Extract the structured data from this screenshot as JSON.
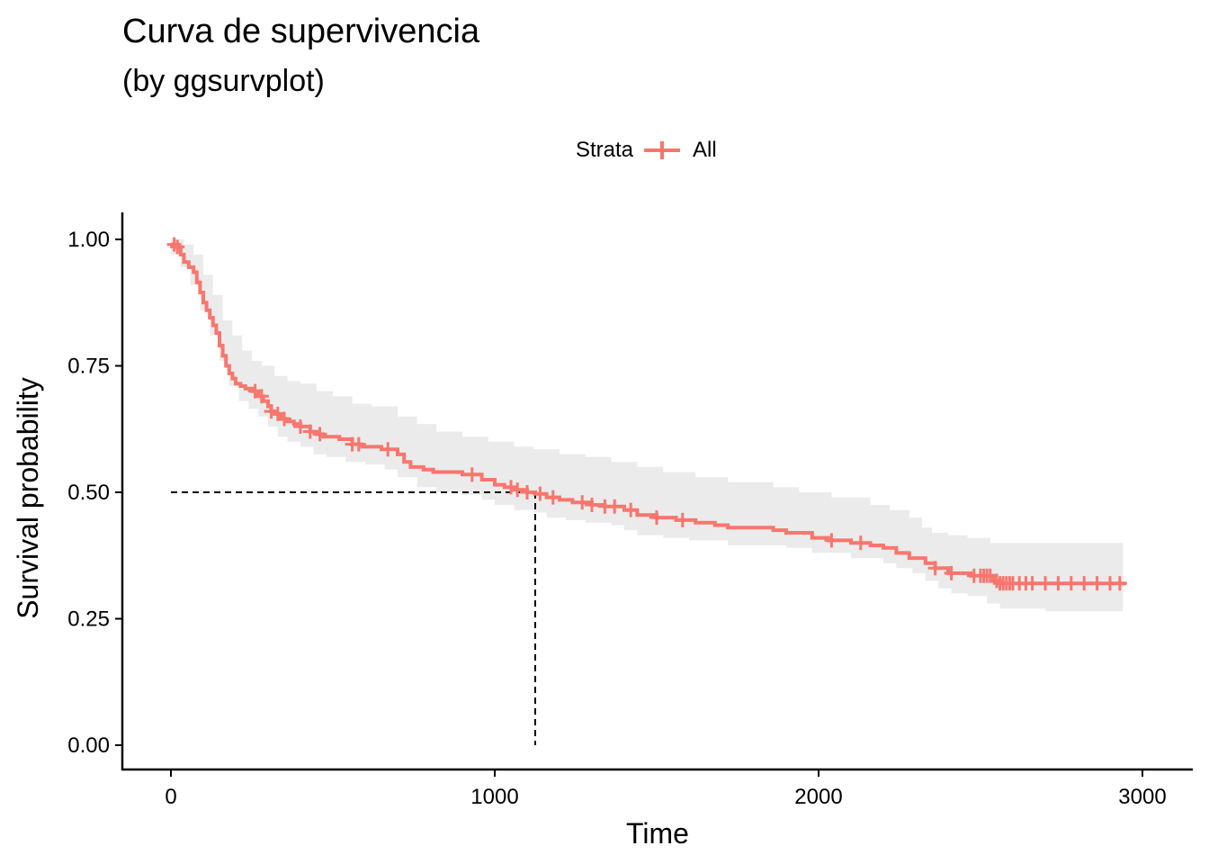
{
  "chart_data": {
    "type": "line",
    "title": "Curva de supervivencia",
    "subtitle": "(by ggsurvplot)",
    "xlabel": "Time",
    "ylabel": "Survival probability",
    "xlim": [
      0,
      3000
    ],
    "ylim": [
      0,
      1
    ],
    "x_ticks": [
      0,
      1000,
      2000,
      3000
    ],
    "x_tick_labels": [
      "0",
      "1000",
      "2000",
      "3000"
    ],
    "y_ticks": [
      0,
      0.25,
      0.5,
      0.75,
      1.0
    ],
    "y_tick_labels": [
      "0.00",
      "0.25",
      "0.50",
      "0.75",
      "1.00"
    ],
    "grid": false,
    "legend": {
      "title": "Strata",
      "position": "top",
      "entries": [
        "All"
      ]
    },
    "colors": {
      "curve": "#F8766D",
      "ribbon": "#EBEBEB",
      "median_line": "#000000"
    },
    "median_survival_time": 1125,
    "series": [
      {
        "name": "All",
        "step_points": [
          [
            0,
            0.99
          ],
          [
            20,
            0.985
          ],
          [
            30,
            0.97
          ],
          [
            40,
            0.955
          ],
          [
            55,
            0.945
          ],
          [
            70,
            0.935
          ],
          [
            80,
            0.915
          ],
          [
            90,
            0.895
          ],
          [
            100,
            0.875
          ],
          [
            110,
            0.86
          ],
          [
            120,
            0.845
          ],
          [
            130,
            0.83
          ],
          [
            140,
            0.815
          ],
          [
            150,
            0.79
          ],
          [
            160,
            0.77
          ],
          [
            170,
            0.75
          ],
          [
            180,
            0.735
          ],
          [
            190,
            0.725
          ],
          [
            200,
            0.715
          ],
          [
            215,
            0.71
          ],
          [
            230,
            0.705
          ],
          [
            250,
            0.7
          ],
          [
            270,
            0.69
          ],
          [
            285,
            0.68
          ],
          [
            300,
            0.67
          ],
          [
            310,
            0.66
          ],
          [
            320,
            0.655
          ],
          [
            340,
            0.645
          ],
          [
            360,
            0.64
          ],
          [
            380,
            0.635
          ],
          [
            400,
            0.63
          ],
          [
            430,
            0.62
          ],
          [
            450,
            0.615
          ],
          [
            470,
            0.61
          ],
          [
            520,
            0.605
          ],
          [
            560,
            0.595
          ],
          [
            590,
            0.59
          ],
          [
            650,
            0.585
          ],
          [
            700,
            0.575
          ],
          [
            720,
            0.56
          ],
          [
            740,
            0.55
          ],
          [
            780,
            0.545
          ],
          [
            810,
            0.54
          ],
          [
            900,
            0.535
          ],
          [
            960,
            0.525
          ],
          [
            1000,
            0.515
          ],
          [
            1030,
            0.51
          ],
          [
            1060,
            0.505
          ],
          [
            1100,
            0.5
          ],
          [
            1125,
            0.497
          ],
          [
            1160,
            0.49
          ],
          [
            1200,
            0.485
          ],
          [
            1240,
            0.48
          ],
          [
            1300,
            0.475
          ],
          [
            1340,
            0.472
          ],
          [
            1400,
            0.465
          ],
          [
            1440,
            0.455
          ],
          [
            1500,
            0.45
          ],
          [
            1560,
            0.445
          ],
          [
            1620,
            0.44
          ],
          [
            1680,
            0.435
          ],
          [
            1720,
            0.43
          ],
          [
            1860,
            0.425
          ],
          [
            1900,
            0.42
          ],
          [
            1980,
            0.41
          ],
          [
            2030,
            0.405
          ],
          [
            2100,
            0.4
          ],
          [
            2160,
            0.395
          ],
          [
            2200,
            0.39
          ],
          [
            2240,
            0.38
          ],
          [
            2280,
            0.37
          ],
          [
            2330,
            0.36
          ],
          [
            2360,
            0.35
          ],
          [
            2400,
            0.34
          ],
          [
            2470,
            0.335
          ],
          [
            2500,
            0.335
          ],
          [
            2540,
            0.325
          ],
          [
            2560,
            0.32
          ],
          [
            2950,
            0.32
          ]
        ],
        "censor_times": [
          10,
          20,
          260,
          280,
          310,
          330,
          350,
          400,
          430,
          460,
          560,
          580,
          670,
          930,
          1050,
          1070,
          1100,
          1140,
          1180,
          1270,
          1300,
          1340,
          1370,
          1420,
          1500,
          1580,
          2040,
          2130,
          2360,
          2410,
          2480,
          2500,
          2510,
          2520,
          2530,
          2550,
          2560,
          2570,
          2580,
          2590,
          2600,
          2620,
          2640,
          2660,
          2700,
          2740,
          2780,
          2820,
          2860,
          2900,
          2930
        ],
        "ci_lower": [
          [
            0,
            0.97
          ],
          [
            30,
            0.945
          ],
          [
            60,
            0.91
          ],
          [
            90,
            0.86
          ],
          [
            120,
            0.81
          ],
          [
            150,
            0.76
          ],
          [
            180,
            0.71
          ],
          [
            210,
            0.68
          ],
          [
            240,
            0.665
          ],
          [
            270,
            0.65
          ],
          [
            300,
            0.63
          ],
          [
            330,
            0.61
          ],
          [
            360,
            0.6
          ],
          [
            400,
            0.59
          ],
          [
            440,
            0.575
          ],
          [
            480,
            0.57
          ],
          [
            540,
            0.56
          ],
          [
            600,
            0.555
          ],
          [
            660,
            0.545
          ],
          [
            700,
            0.53
          ],
          [
            760,
            0.51
          ],
          [
            820,
            0.5
          ],
          [
            900,
            0.495
          ],
          [
            960,
            0.485
          ],
          [
            1000,
            0.475
          ],
          [
            1060,
            0.465
          ],
          [
            1120,
            0.46
          ],
          [
            1160,
            0.45
          ],
          [
            1220,
            0.445
          ],
          [
            1280,
            0.44
          ],
          [
            1360,
            0.435
          ],
          [
            1400,
            0.425
          ],
          [
            1440,
            0.415
          ],
          [
            1520,
            0.41
          ],
          [
            1600,
            0.405
          ],
          [
            1720,
            0.395
          ],
          [
            1900,
            0.39
          ],
          [
            1980,
            0.38
          ],
          [
            2100,
            0.37
          ],
          [
            2200,
            0.36
          ],
          [
            2240,
            0.35
          ],
          [
            2290,
            0.34
          ],
          [
            2330,
            0.325
          ],
          [
            2370,
            0.31
          ],
          [
            2410,
            0.3
          ],
          [
            2460,
            0.295
          ],
          [
            2520,
            0.28
          ],
          [
            2560,
            0.27
          ],
          [
            2700,
            0.265
          ],
          [
            2940,
            0.26
          ]
        ],
        "ci_upper": [
          [
            0,
            1.0
          ],
          [
            40,
            0.99
          ],
          [
            70,
            0.97
          ],
          [
            100,
            0.93
          ],
          [
            130,
            0.89
          ],
          [
            160,
            0.84
          ],
          [
            190,
            0.81
          ],
          [
            220,
            0.78
          ],
          [
            250,
            0.76
          ],
          [
            280,
            0.75
          ],
          [
            320,
            0.73
          ],
          [
            360,
            0.72
          ],
          [
            400,
            0.715
          ],
          [
            450,
            0.7
          ],
          [
            500,
            0.69
          ],
          [
            560,
            0.675
          ],
          [
            620,
            0.67
          ],
          [
            700,
            0.65
          ],
          [
            760,
            0.635
          ],
          [
            820,
            0.62
          ],
          [
            900,
            0.61
          ],
          [
            980,
            0.6
          ],
          [
            1060,
            0.59
          ],
          [
            1120,
            0.585
          ],
          [
            1200,
            0.575
          ],
          [
            1280,
            0.57
          ],
          [
            1360,
            0.56
          ],
          [
            1440,
            0.55
          ],
          [
            1520,
            0.54
          ],
          [
            1620,
            0.53
          ],
          [
            1720,
            0.52
          ],
          [
            1860,
            0.51
          ],
          [
            1940,
            0.5
          ],
          [
            2040,
            0.49
          ],
          [
            2160,
            0.475
          ],
          [
            2220,
            0.465
          ],
          [
            2280,
            0.45
          ],
          [
            2320,
            0.43
          ],
          [
            2350,
            0.42
          ],
          [
            2400,
            0.415
          ],
          [
            2460,
            0.41
          ],
          [
            2530,
            0.4
          ],
          [
            2940,
            0.4
          ]
        ]
      }
    ]
  }
}
